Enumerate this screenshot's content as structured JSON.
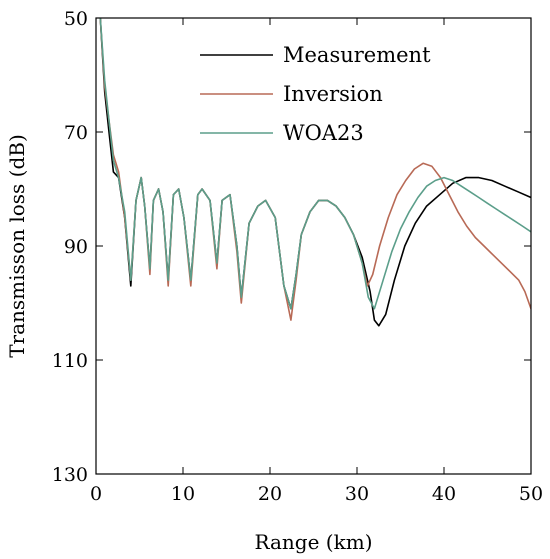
{
  "chart_data": {
    "type": "line",
    "title": "",
    "xlabel": "Range (km)",
    "ylabel": "Transmisson loss (dB)",
    "xlim": [
      0,
      50
    ],
    "ylim": [
      50,
      130
    ],
    "y_inverted": true,
    "xticks": [
      0,
      10,
      20,
      30,
      40,
      50
    ],
    "yticks": [
      50,
      70,
      90,
      110,
      130
    ],
    "grid": false,
    "legend_position": "top-right",
    "series": [
      {
        "name": "Measurement",
        "color": "#000000",
        "x": [
          0.5,
          1.0,
          1.5,
          2.0,
          2.6,
          3.3,
          4.0,
          4.6,
          5.2,
          5.6,
          6.2,
          6.6,
          7.2,
          7.7,
          8.3,
          8.9,
          9.5,
          10.1,
          10.9,
          11.7,
          12.2,
          13.1,
          13.9,
          14.5,
          15.4,
          16.2,
          16.7,
          17.6,
          18.6,
          19.5,
          20.6,
          21.6,
          22.4,
          23.0,
          23.6,
          24.6,
          25.6,
          26.6,
          27.6,
          28.6,
          29.6,
          30.6,
          31.5,
          32.0,
          32.5,
          33.3,
          34.3,
          35.5,
          36.7,
          38.0,
          39.5,
          41.0,
          42.5,
          44.0,
          45.5,
          47.0,
          48.5,
          50.0
        ],
        "values": [
          50,
          63,
          70,
          77,
          78,
          85,
          97,
          82,
          78,
          83,
          94,
          82,
          80,
          84,
          96,
          81,
          80,
          85,
          96,
          81,
          80,
          82,
          93,
          82,
          81,
          90,
          99,
          86,
          83,
          82,
          85,
          97,
          101,
          95,
          88,
          84,
          82,
          82,
          83,
          85,
          88,
          92,
          98,
          103,
          104,
          102,
          96,
          90,
          86,
          83,
          81,
          79,
          78,
          78,
          78.5,
          79.5,
          80.5,
          81.5
        ]
      },
      {
        "name": "Inversion",
        "color": "#b86a56",
        "x": [
          0.5,
          1.0,
          1.5,
          2.0,
          2.6,
          3.3,
          4.0,
          4.6,
          5.2,
          5.6,
          6.2,
          6.6,
          7.2,
          7.7,
          8.3,
          8.9,
          9.5,
          10.1,
          10.9,
          11.7,
          12.2,
          13.1,
          13.9,
          14.5,
          15.4,
          16.2,
          16.7,
          17.6,
          18.6,
          19.5,
          20.6,
          21.6,
          22.4,
          23.0,
          23.6,
          24.6,
          25.6,
          26.6,
          27.6,
          28.6,
          29.6,
          30.6,
          31.2,
          31.8,
          32.6,
          33.6,
          34.6,
          35.6,
          36.6,
          37.6,
          38.6,
          39.6,
          40.6,
          41.6,
          42.6,
          43.6,
          44.6,
          45.6,
          46.6,
          47.6,
          48.6,
          49.3,
          50.0
        ],
        "values": [
          50,
          62,
          68,
          74,
          77,
          85,
          96,
          82,
          78,
          83,
          95,
          82,
          80,
          84,
          97,
          81,
          80,
          85,
          97,
          81,
          80,
          82,
          94,
          82,
          81,
          91,
          100,
          86,
          83,
          82,
          85,
          97,
          103,
          96,
          88,
          84,
          82,
          82,
          83,
          85,
          88,
          93,
          97,
          95,
          90,
          85,
          81,
          78.5,
          76.5,
          75.5,
          76,
          78,
          81,
          84,
          86.5,
          88.5,
          90,
          91.5,
          93,
          94.5,
          96,
          98,
          101
        ]
      },
      {
        "name": "WOA23",
        "color": "#5b9e8a",
        "x": [
          0.5,
          1.0,
          1.5,
          2.0,
          2.6,
          3.3,
          4.0,
          4.6,
          5.2,
          5.6,
          6.2,
          6.6,
          7.2,
          7.7,
          8.3,
          8.9,
          9.5,
          10.1,
          10.9,
          11.7,
          12.2,
          13.1,
          13.9,
          14.5,
          15.4,
          16.2,
          16.7,
          17.6,
          18.6,
          19.5,
          20.6,
          21.6,
          22.4,
          23.0,
          23.6,
          24.6,
          25.6,
          26.6,
          27.6,
          28.6,
          29.6,
          30.6,
          31.3,
          32.0,
          33.0,
          34.0,
          35.0,
          36.0,
          37.0,
          38.0,
          39.0,
          40.0,
          41.0,
          42.0,
          43.0,
          44.0,
          45.0,
          46.0,
          47.0,
          48.0,
          49.0,
          50.0
        ],
        "values": [
          50,
          61,
          68,
          75,
          78,
          84,
          96,
          82,
          78,
          83,
          94,
          82,
          80,
          84,
          96,
          81,
          80,
          85,
          96,
          81,
          80,
          82,
          93,
          82,
          81,
          90,
          99,
          86,
          83,
          82,
          85,
          97,
          101,
          95,
          88,
          84,
          82,
          82,
          83,
          85,
          88,
          93,
          99,
          101,
          96,
          91,
          87,
          84,
          81.5,
          79.5,
          78.5,
          78,
          78.5,
          79.5,
          80.5,
          81.5,
          82.5,
          83.5,
          84.5,
          85.5,
          86.5,
          87.5
        ]
      }
    ]
  }
}
